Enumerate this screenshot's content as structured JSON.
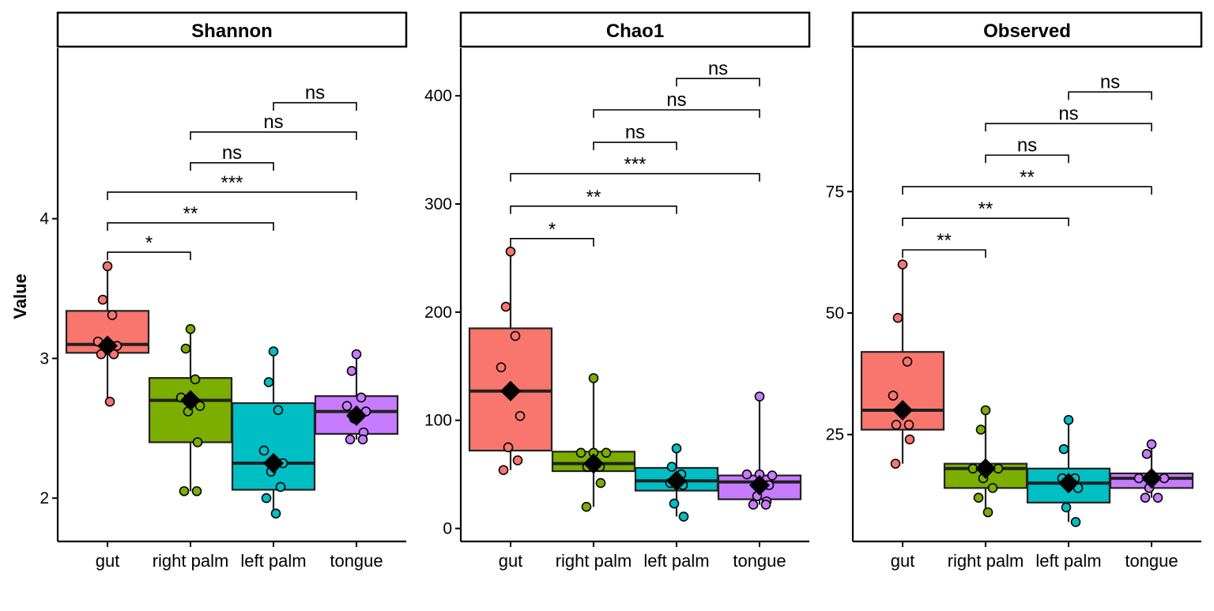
{
  "figure": {
    "ylabel": "Value",
    "colors": {
      "gut": "#F8766D",
      "right palm": "#7CAE00",
      "left palm": "#00BFC4",
      "tongue": "#C77CFF"
    }
  },
  "chart_data": [
    {
      "type": "box",
      "title": "Shannon",
      "categories": [
        "gut",
        "right palm",
        "left palm",
        "tongue"
      ],
      "yticks": [
        2,
        3,
        4
      ],
      "ylim": [
        1.69,
        5.22
      ],
      "boxes": [
        {
          "category": "gut",
          "min": 2.69,
          "q1": 3.04,
          "median": 3.1,
          "q3": 3.34,
          "max": 3.66,
          "mean": 3.09
        },
        {
          "category": "right palm",
          "min": 2.05,
          "q1": 2.4,
          "median": 2.7,
          "q3": 2.86,
          "max": 3.21,
          "mean": 2.7
        },
        {
          "category": "left palm",
          "min": 1.89,
          "q1": 2.06,
          "median": 2.25,
          "q3": 2.68,
          "max": 3.05,
          "mean": 2.25
        },
        {
          "category": "tongue",
          "min": 2.42,
          "q1": 2.46,
          "median": 2.62,
          "q3": 2.73,
          "max": 3.03,
          "mean": 2.59
        }
      ],
      "points": [
        {
          "category": "gut",
          "values": [
            3.66,
            3.42,
            3.31,
            3.12,
            3.09,
            3.07,
            3.03,
            3.03,
            2.69
          ]
        },
        {
          "category": "right palm",
          "values": [
            3.21,
            3.07,
            2.85,
            2.72,
            2.66,
            2.62,
            2.4,
            2.05,
            2.05
          ]
        },
        {
          "category": "left palm",
          "values": [
            3.05,
            2.83,
            2.63,
            2.34,
            2.25,
            2.19,
            2.08,
            2.0,
            1.89
          ]
        },
        {
          "category": "tongue",
          "values": [
            3.03,
            2.91,
            2.72,
            2.66,
            2.62,
            2.57,
            2.47,
            2.42,
            2.42
          ]
        }
      ],
      "comparisons": [
        {
          "groups": [
            "gut",
            "right palm"
          ],
          "label": "*",
          "y": 3.76
        },
        {
          "groups": [
            "gut",
            "left palm"
          ],
          "label": "**",
          "y": 3.97
        },
        {
          "groups": [
            "gut",
            "tongue"
          ],
          "label": "***",
          "y": 4.19
        },
        {
          "groups": [
            "right palm",
            "left palm"
          ],
          "label": "ns",
          "y": 4.4
        },
        {
          "groups": [
            "right palm",
            "tongue"
          ],
          "label": "ns",
          "y": 4.62
        },
        {
          "groups": [
            "left palm",
            "tongue"
          ],
          "label": "ns",
          "y": 4.83
        }
      ]
    },
    {
      "type": "box",
      "title": "Chao1",
      "categories": [
        "gut",
        "right palm",
        "left palm",
        "tongue"
      ],
      "yticks": [
        0,
        100,
        200,
        300,
        400
      ],
      "ylim": [
        -12,
        444
      ],
      "boxes": [
        {
          "category": "gut",
          "min": 54,
          "q1": 72,
          "median": 127,
          "q3": 185,
          "max": 256,
          "mean": 127
        },
        {
          "category": "right palm",
          "min": 20,
          "q1": 53,
          "median": 60,
          "q3": 71,
          "max": 139,
          "mean": 60
        },
        {
          "category": "left palm",
          "min": 11,
          "q1": 35,
          "median": 44,
          "q3": 56,
          "max": 74,
          "mean": 44
        },
        {
          "category": "tongue",
          "min": 22,
          "q1": 27,
          "median": 43,
          "q3": 49,
          "max": 122,
          "mean": 40
        }
      ],
      "points": [
        {
          "category": "gut",
          "values": [
            256,
            205,
            178,
            149,
            104,
            75,
            63,
            54
          ]
        },
        {
          "category": "right palm",
          "values": [
            139,
            70,
            70,
            70,
            57,
            57,
            42,
            20
          ]
        },
        {
          "category": "left palm",
          "values": [
            74,
            57,
            50,
            42,
            40,
            23,
            11
          ]
        },
        {
          "category": "tongue",
          "values": [
            122,
            50,
            50,
            49,
            40,
            30,
            25,
            22,
            22
          ]
        }
      ],
      "comparisons": [
        {
          "groups": [
            "gut",
            "right palm"
          ],
          "label": "*",
          "y": 268
        },
        {
          "groups": [
            "gut",
            "left palm"
          ],
          "label": "**",
          "y": 298
        },
        {
          "groups": [
            "gut",
            "tongue"
          ],
          "label": "***",
          "y": 328
        },
        {
          "groups": [
            "right palm",
            "left palm"
          ],
          "label": "ns",
          "y": 357
        },
        {
          "groups": [
            "right palm",
            "tongue"
          ],
          "label": "ns",
          "y": 387
        },
        {
          "groups": [
            "left palm",
            "tongue"
          ],
          "label": "ns",
          "y": 416
        }
      ]
    },
    {
      "type": "box",
      "title": "Observed",
      "categories": [
        "gut",
        "right palm",
        "left palm",
        "tongue"
      ],
      "yticks": [
        25,
        50,
        75
      ],
      "ylim": [
        3,
        104.5
      ],
      "boxes": [
        {
          "category": "gut",
          "min": 19,
          "q1": 26,
          "median": 30,
          "q3": 42,
          "max": 60,
          "mean": 30
        },
        {
          "category": "right palm",
          "min": 9,
          "q1": 14,
          "median": 18,
          "q3": 19,
          "max": 30,
          "mean": 18
        },
        {
          "category": "left palm",
          "min": 7,
          "q1": 11,
          "median": 15,
          "q3": 18,
          "max": 28,
          "mean": 15
        },
        {
          "category": "tongue",
          "min": 12,
          "q1": 14,
          "median": 16,
          "q3": 17,
          "max": 23,
          "mean": 16
        }
      ],
      "points": [
        {
          "category": "gut",
          "values": [
            60,
            49,
            40,
            33,
            27,
            27,
            24,
            19
          ]
        },
        {
          "category": "right palm",
          "values": [
            30,
            26,
            18,
            18,
            18,
            16,
            14,
            12,
            9
          ]
        },
        {
          "category": "left palm",
          "values": [
            28,
            22,
            16,
            16,
            14,
            10,
            7
          ]
        },
        {
          "category": "tongue",
          "values": [
            23,
            21,
            16,
            16,
            16,
            14,
            12,
            12
          ]
        }
      ],
      "comparisons": [
        {
          "groups": [
            "gut",
            "right palm"
          ],
          "label": "**",
          "y": 63
        },
        {
          "groups": [
            "gut",
            "left palm"
          ],
          "label": "**",
          "y": 69.5
        },
        {
          "groups": [
            "gut",
            "tongue"
          ],
          "label": "**",
          "y": 76
        },
        {
          "groups": [
            "right palm",
            "left palm"
          ],
          "label": "ns",
          "y": 82.5
        },
        {
          "groups": [
            "right palm",
            "tongue"
          ],
          "label": "ns",
          "y": 89
        },
        {
          "groups": [
            "left palm",
            "tongue"
          ],
          "label": "ns",
          "y": 95.5
        }
      ]
    }
  ]
}
